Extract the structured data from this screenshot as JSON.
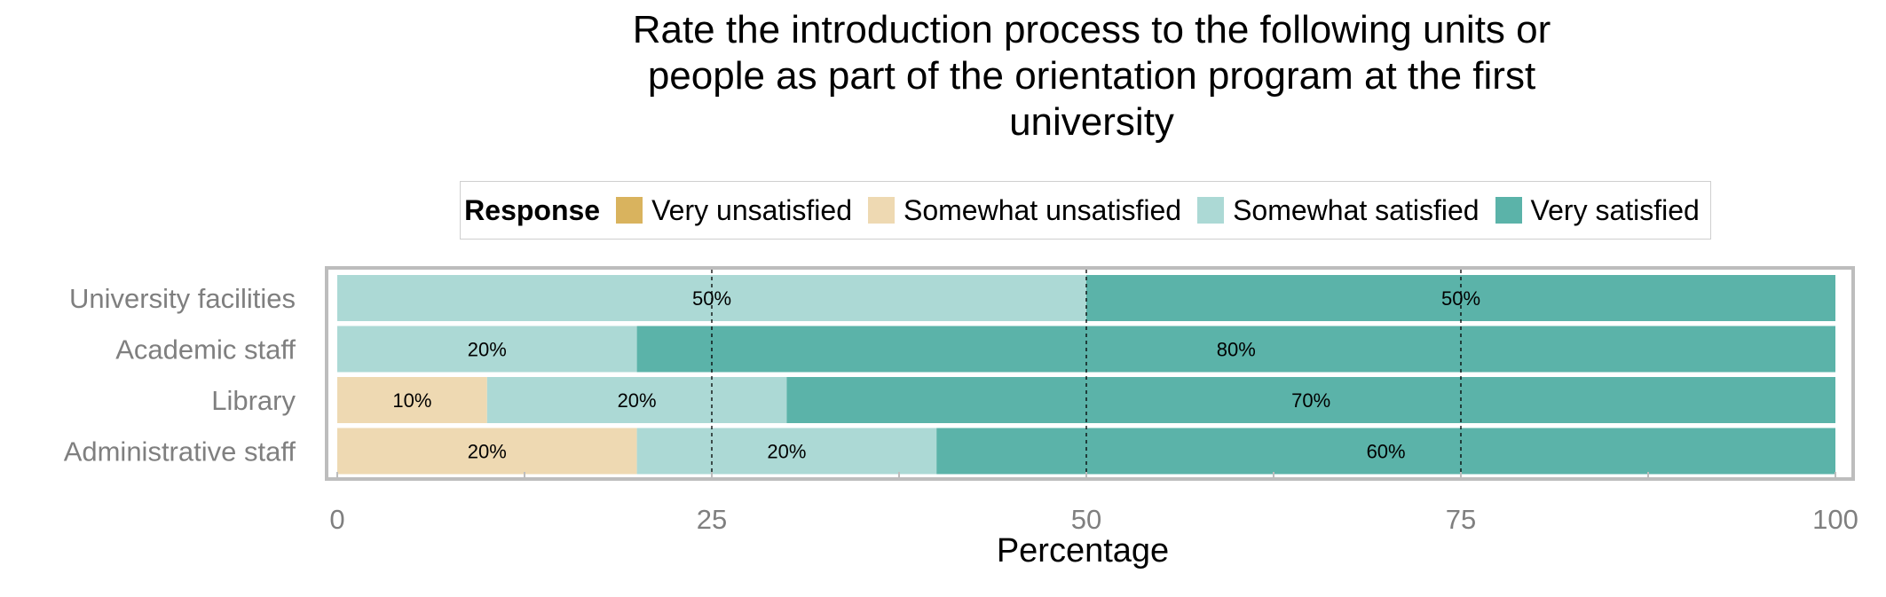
{
  "chart_data": {
    "type": "bar",
    "orientation": "horizontal",
    "stacked": true,
    "title": "Rate the introduction process to the following units or people as part of the orientation program at the first university",
    "title_lines": [
      "Rate the introduction process to the following units or",
      "people as part of the orientation program at the first",
      "university"
    ],
    "xlabel": "Percentage",
    "ylabel": "",
    "xlim": [
      0,
      100
    ],
    "x_ticks": [
      0,
      25,
      50,
      75,
      100
    ],
    "x_tick_labels": [
      "0",
      "25",
      "50",
      "75",
      "100"
    ],
    "legend_title": "Response",
    "legend_position": "top",
    "grid": true,
    "categories": [
      "University facilities",
      "Academic staff",
      "Library",
      "Administrative staff"
    ],
    "series": [
      {
        "name": "Very unsatisfied",
        "color": "#D9B35E",
        "values": [
          0,
          0,
          0,
          0
        ]
      },
      {
        "name": "Somewhat unsatisfied",
        "color": "#EED9B2",
        "values": [
          0,
          0,
          10,
          20
        ]
      },
      {
        "name": "Somewhat satisfied",
        "color": "#ACD9D5",
        "values": [
          50,
          20,
          20,
          20
        ]
      },
      {
        "name": "Very satisfied",
        "color": "#5BB3A9",
        "values": [
          50,
          80,
          70,
          60
        ]
      }
    ],
    "value_label_suffix": "%"
  }
}
